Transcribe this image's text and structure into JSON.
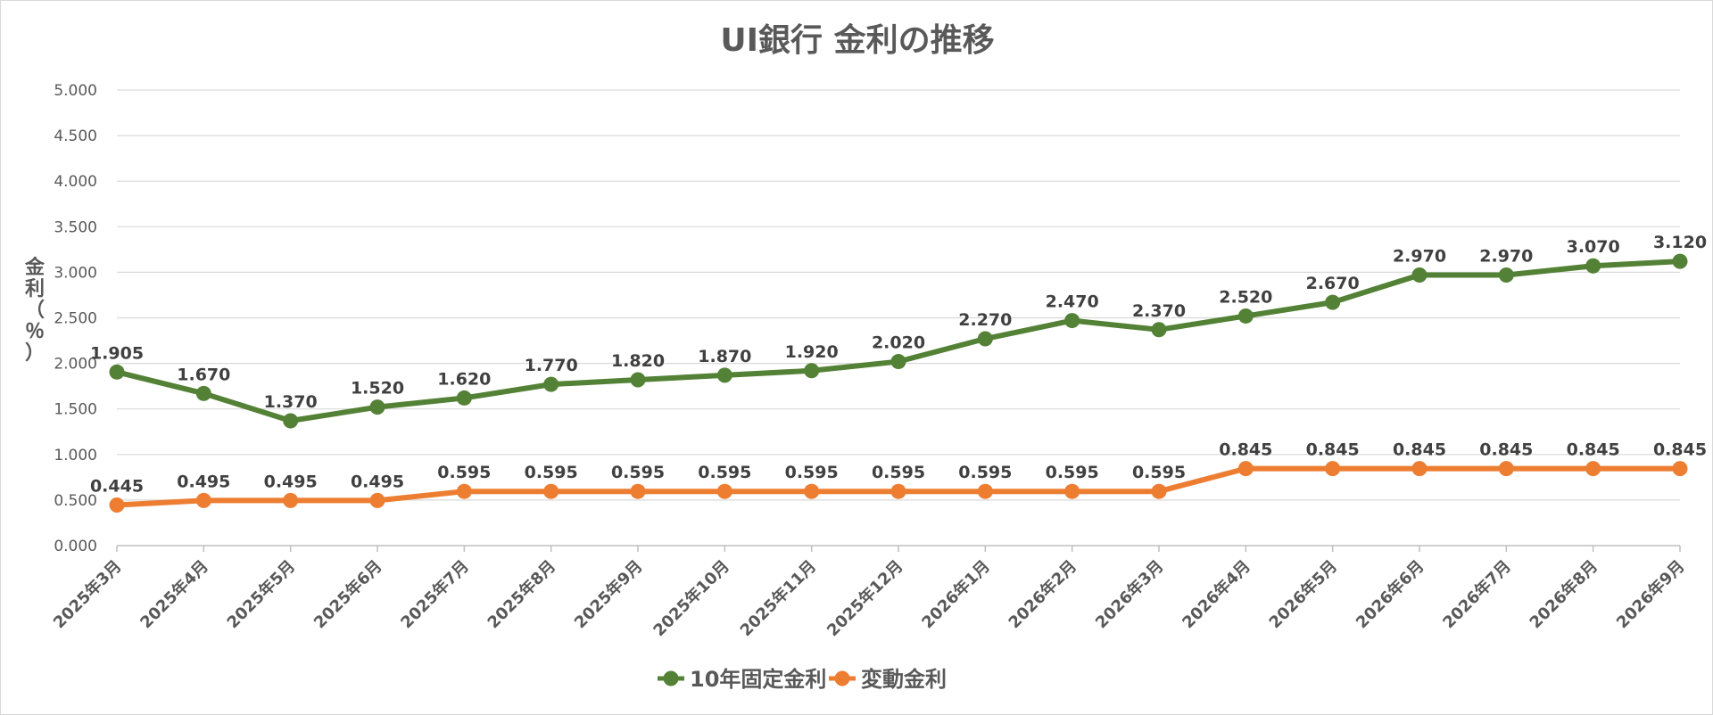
{
  "chart_data": {
    "type": "line",
    "title": "UI銀行 金利の推移",
    "ylabel": "金利（％）",
    "ylabel_chars": [
      "金",
      "利",
      "（",
      "％",
      "）"
    ],
    "xlabel": "",
    "ylim": [
      0,
      5
    ],
    "yticks": [
      "0.000",
      "0.500",
      "1.000",
      "1.500",
      "2.000",
      "2.500",
      "3.000",
      "3.500",
      "4.000",
      "4.500",
      "5.000"
    ],
    "grid": true,
    "legend_position": "bottom",
    "categories": [
      "2025年3月",
      "2025年4月",
      "2025年5月",
      "2025年6月",
      "2025年7月",
      "2025年8月",
      "2025年9月",
      "2025年10月",
      "2025年11月",
      "2025年12月",
      "2026年1月",
      "2026年2月",
      "2026年3月",
      "2026年4月",
      "2026年5月",
      "2026年6月",
      "2026年7月",
      "2026年8月",
      "2026年9月"
    ],
    "series": [
      {
        "name": "10年固定金利",
        "color": "#538135",
        "values": [
          1.905,
          1.67,
          1.37,
          1.52,
          1.62,
          1.77,
          1.82,
          1.87,
          1.92,
          2.02,
          2.27,
          2.47,
          2.37,
          2.52,
          2.67,
          2.97,
          2.97,
          3.07,
          3.12
        ],
        "labels": [
          "1.905",
          "1.670",
          "1.370",
          "1.520",
          "1.620",
          "1.770",
          "1.820",
          "1.870",
          "1.920",
          "2.020",
          "2.270",
          "2.470",
          "2.370",
          "2.520",
          "2.670",
          "2.970",
          "2.970",
          "3.070",
          "3.120"
        ]
      },
      {
        "name": "変動金利",
        "color": "#ED7D31",
        "values": [
          0.445,
          0.495,
          0.495,
          0.495,
          0.595,
          0.595,
          0.595,
          0.595,
          0.595,
          0.595,
          0.595,
          0.595,
          0.595,
          0.845,
          0.845,
          0.845,
          0.845,
          0.845,
          0.845
        ],
        "labels": [
          "0.445",
          "0.495",
          "0.495",
          "0.495",
          "0.595",
          "0.595",
          "0.595",
          "0.595",
          "0.595",
          "0.595",
          "0.595",
          "0.595",
          "0.595",
          "0.845",
          "0.845",
          "0.845",
          "0.845",
          "0.845",
          "0.845"
        ]
      }
    ]
  }
}
